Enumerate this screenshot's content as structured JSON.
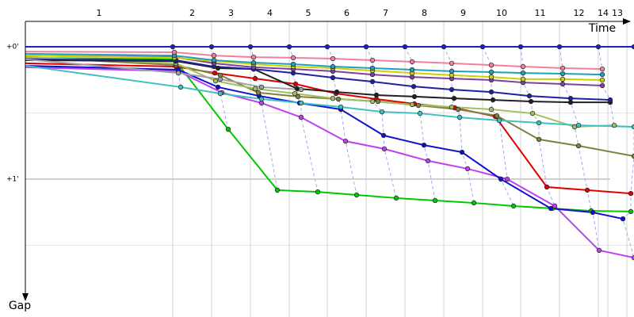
{
  "chart_data": {
    "type": "line",
    "x_label": "Time",
    "y_label": "Gap",
    "xlim": [
      0,
      1536
    ],
    "ylim": [
      -11.5,
      120
    ],
    "xticks": [
      {
        "value": 372,
        "label": "1"
      },
      {
        "value": 470,
        "label": "2"
      },
      {
        "value": 568,
        "label": "3"
      },
      {
        "value": 666,
        "label": "4"
      },
      {
        "value": 762,
        "label": "5"
      },
      {
        "value": 860,
        "label": "6"
      },
      {
        "value": 958,
        "label": "7"
      },
      {
        "value": 1056,
        "label": "8"
      },
      {
        "value": 1154,
        "label": "9"
      },
      {
        "value": 1250,
        "label": "10"
      },
      {
        "value": 1348,
        "label": "11"
      },
      {
        "value": 1446,
        "label": "12"
      },
      {
        "value": 1470,
        "label": "14"
      },
      {
        "value": 1518,
        "label": "13"
      }
    ],
    "yticks": [
      {
        "value": 0,
        "label": "+0'"
      },
      {
        "value": 60,
        "label": "+1'"
      }
    ],
    "minor_yticks": [
      30,
      90
    ],
    "grid": true,
    "series": [
      {
        "color": "#2020c0",
        "x": [
          0,
          372,
          470,
          568,
          666,
          762,
          860,
          958,
          1056,
          1154,
          1250,
          1348,
          1446,
          1536
        ],
        "values": [
          0,
          0,
          0,
          0,
          0,
          0,
          0,
          0,
          0,
          0,
          0,
          0,
          0,
          0
        ]
      },
      {
        "color": "#00c800",
        "x": [
          0,
          376,
          512,
          636,
          738,
          836,
          936,
          1034,
          1132,
          1232,
          1330,
          1428,
          1528
        ],
        "values": [
          5.0,
          5.7,
          37.4,
          65.0,
          65.8,
          67.2,
          68.6,
          69.7,
          70.8,
          72.2,
          73.3,
          74.4,
          74.7
        ]
      },
      {
        "color": "#c040f0",
        "x": [
          0,
          386,
          496,
          596,
          696,
          808,
          906,
          1016,
          1116,
          1216,
          1336,
          1448,
          1536
        ],
        "values": [
          9.3,
          11.1,
          20.8,
          25.5,
          32.0,
          42.8,
          46.3,
          51.7,
          55.3,
          60.0,
          72.2,
          92.3,
          95.6
        ]
      },
      {
        "color": "#1010d0",
        "x": [
          0,
          386,
          486,
          590,
          692,
          796,
          904,
          1006,
          1102,
          1200,
          1326,
          1432,
          1508
        ],
        "values": [
          8.6,
          10.4,
          18.3,
          22.3,
          25.5,
          28.4,
          40.2,
          44.6,
          47.8,
          60.0,
          73.3,
          75.1,
          78.0
        ]
      },
      {
        "color": "#e00000",
        "x": [
          0,
          380,
          478,
          580,
          682,
          784,
          886,
          982,
          1084,
          1186,
          1316,
          1418,
          1528
        ],
        "values": [
          7.5,
          9.0,
          11.9,
          14.4,
          16.9,
          21.2,
          23.7,
          25.9,
          27.7,
          31.6,
          63.6,
          65.0,
          66.5
        ]
      },
      {
        "color": "#808040",
        "x": [
          0,
          380,
          492,
          588,
          688,
          790,
          890,
          992,
          1092,
          1190,
          1296,
          1396,
          1536
        ],
        "values": [
          4.7,
          8.3,
          12.9,
          20.8,
          22.6,
          23.7,
          24.8,
          26.6,
          28.4,
          31.3,
          42.0,
          44.9,
          49.6
        ]
      },
      {
        "color": "#a0c060",
        "x": [
          0,
          380,
          480,
          580,
          680,
          776,
          876,
          976,
          1076,
          1176,
          1280,
          1386,
          1486
        ],
        "values": [
          4.7,
          7.5,
          15.5,
          19.0,
          21.2,
          23.4,
          24.8,
          26.2,
          27.3,
          28.4,
          30.2,
          36.3,
          35.6
        ]
      },
      {
        "color": "#40c0c0",
        "x": [
          0,
          392,
          492,
          596,
          696,
          796,
          900,
          996,
          1096,
          1196,
          1296,
          1396,
          1536
        ],
        "values": [
          8.6,
          18.3,
          21.2,
          23.7,
          25.5,
          27.3,
          29.5,
          30.2,
          32.0,
          33.4,
          34.5,
          35.6,
          36.3
        ]
      },
      {
        "color": "#202020",
        "x": [
          0,
          380,
          486,
          576,
          686,
          786,
          886,
          982,
          1082,
          1180,
          1276,
          1376,
          1476
        ],
        "values": [
          6.1,
          6.5,
          9.7,
          10.1,
          19.0,
          20.5,
          21.9,
          22.6,
          23.4,
          24.1,
          24.8,
          25.2,
          25.2
        ]
      },
      {
        "color": "#2020a0",
        "x": [
          0,
          380,
          476,
          576,
          676,
          776,
          876,
          980,
          1076,
          1176,
          1272,
          1376,
          1476
        ],
        "values": [
          5.7,
          6.1,
          9.0,
          10.1,
          11.9,
          14.0,
          15.8,
          18.0,
          19.4,
          20.5,
          22.3,
          23.4,
          24.1
        ]
      },
      {
        "color": "#8040a0",
        "x": [
          0,
          376,
          476,
          576,
          676,
          776,
          876,
          976,
          1076,
          1176,
          1256,
          1356,
          1456
        ],
        "values": [
          4.0,
          4.7,
          7.5,
          9.3,
          10.1,
          11.1,
          12.6,
          13.7,
          14.4,
          15.1,
          16.2,
          16.9,
          17.6
        ]
      },
      {
        "color": "#d0d000",
        "x": [
          0,
          376,
          476,
          576,
          676,
          776,
          876,
          976,
          1076,
          1176,
          1256,
          1356,
          1456
        ],
        "values": [
          4.0,
          5.0,
          6.5,
          7.9,
          9.0,
          9.7,
          10.8,
          11.9,
          12.9,
          13.7,
          14.7,
          14.7,
          15.1
        ]
      },
      {
        "color": "#20a0c0",
        "x": [
          0,
          376,
          476,
          576,
          676,
          776,
          876,
          976,
          1076,
          1176,
          1256,
          1356,
          1456
        ],
        "values": [
          3.2,
          4.0,
          6.1,
          7.2,
          7.9,
          9.0,
          9.7,
          10.4,
          11.1,
          11.5,
          11.9,
          12.2,
          12.6
        ]
      },
      {
        "color": "#f080a0",
        "x": [
          0,
          376,
          476,
          576,
          676,
          776,
          876,
          976,
          1076,
          1176,
          1256,
          1356,
          1456
        ],
        "values": [
          2.2,
          2.5,
          4.0,
          4.7,
          5.0,
          5.4,
          6.1,
          6.8,
          7.5,
          8.3,
          9.0,
          9.7,
          10.1
        ]
      },
      {
        "color": "#a0a0a0",
        "x": [
          0,
          386,
          492,
          596,
          696
        ],
        "values": [
          5.7,
          11.9,
          14.7,
          18.3,
          19.4
        ]
      }
    ]
  }
}
